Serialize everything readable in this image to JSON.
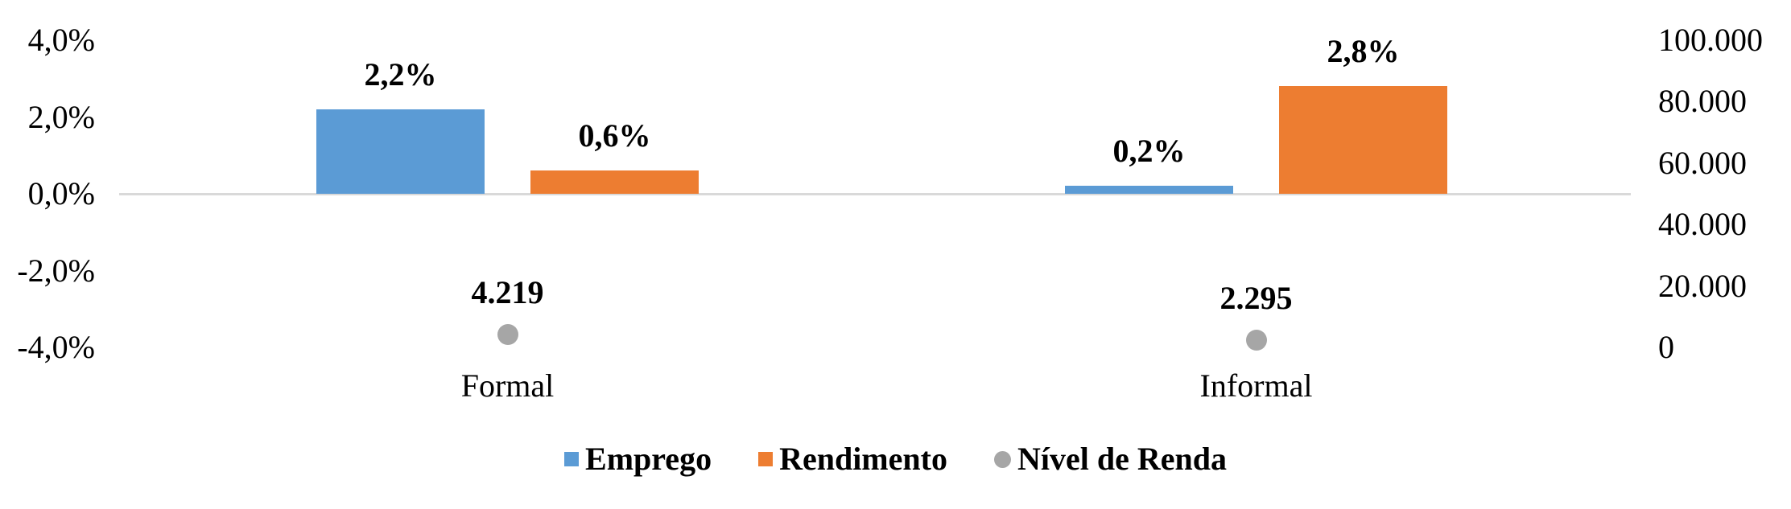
{
  "chart_data": {
    "type": "bar",
    "subtype": "clustered-bars-with-point-markers-combo",
    "title": "",
    "xlabel": "",
    "ylabel": "",
    "grid": "off (single zero axis line only)",
    "legend_position": "bottom-center",
    "axis_line_color": "#D9D9D9",
    "background_color": "#FFFFFF",
    "text_color": "#000000",
    "categories": [
      "Formal",
      "Informal"
    ],
    "left_axis": {
      "min": -4,
      "max": 4,
      "unit": "%",
      "ticks": [
        "4,0%",
        "2,0%",
        "0,0%",
        "-2,0%",
        "-4,0%"
      ]
    },
    "right_axis": {
      "min": 0,
      "max": 100000,
      "ticks": [
        "100.000",
        "80.000",
        "60.000",
        "40.000",
        "20.000",
        "0"
      ]
    },
    "series": [
      {
        "name": "Emprego",
        "type": "bar",
        "axis": "left",
        "color": "#5B9BD5",
        "values": [
          2.2,
          0.2
        ],
        "labels": [
          "2,2%",
          "0,2%"
        ]
      },
      {
        "name": "Rendimento",
        "type": "bar",
        "axis": "left",
        "color": "#ED7D31",
        "values": [
          0.6,
          2.8
        ],
        "labels": [
          "0,6%",
          "2,8%"
        ]
      },
      {
        "name": "Nível de Renda",
        "type": "point",
        "axis": "right",
        "color": "#A6A6A6",
        "values": [
          4219,
          2295
        ],
        "labels": [
          "4.219",
          "2.295"
        ]
      }
    ]
  }
}
